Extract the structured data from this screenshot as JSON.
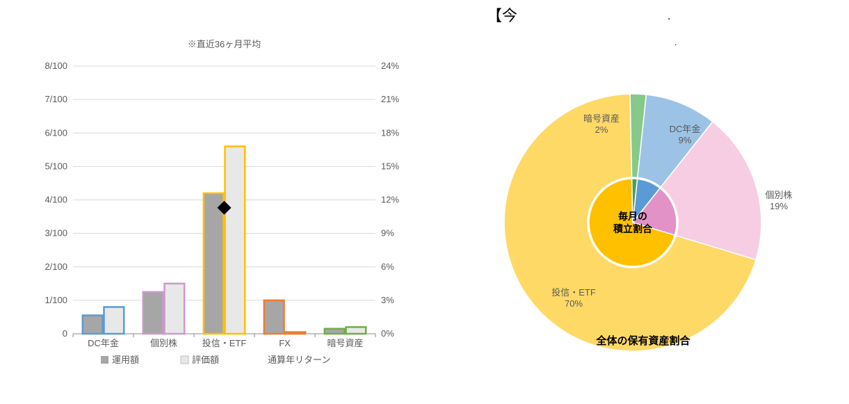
{
  "right_header_left": "【今",
  "right_header_dots": [
    "."
  ],
  "bar_chart": {
    "type": "grouped-bar-with-marker",
    "subtitle": "※直近36ヶ月平均",
    "categories": [
      "DC年金",
      "個別株",
      "投信・ETF",
      "FX",
      "暗号資産"
    ],
    "y_left": {
      "min": 0,
      "max": 8,
      "ticks": [
        0,
        1,
        2,
        3,
        4,
        5,
        6,
        7,
        8
      ],
      "labels": [
        "0",
        "1/100",
        "2/100",
        "3/100",
        "4/100",
        "5/100",
        "6/100",
        "7/100",
        "8/100"
      ],
      "color": "#595959",
      "fontsize": 13
    },
    "y_right": {
      "min": 0,
      "max": 24,
      "ticks": [
        0,
        3,
        6,
        9,
        12,
        15,
        18,
        21,
        24
      ],
      "labels": [
        "0%",
        "3%",
        "6%",
        "9%",
        "12%",
        "15%",
        "18%",
        "21%",
        "24%"
      ],
      "color": "#595959",
      "fontsize": 13
    },
    "series_a": {
      "label": "運用額",
      "values": [
        0.55,
        1.25,
        4.2,
        1.0,
        0.15
      ]
    },
    "series_b": {
      "label": "評価額",
      "values": [
        0.8,
        1.5,
        5.6,
        0.05,
        0.2
      ]
    },
    "marker": {
      "label": "通算年リターン",
      "values": [
        null,
        null,
        11.3,
        null,
        null
      ],
      "symbol": "diamond",
      "color": "#000000",
      "size": 10
    },
    "colors_fill": [
      "#a6a6a6",
      "#a6a6a6",
      "#a6a6a6",
      "#a6a6a6",
      "#a6a6a6"
    ],
    "colors_stroke_a": [
      "#5b9bd5",
      "#cc99cc",
      "#ffc000",
      "#ed7d31",
      "#70ad47"
    ],
    "colors_fill_b": [
      "#e8e8e8",
      "#e8e8e8",
      "#e8e8e8",
      "#e8e8e8",
      "#e8e8e8"
    ],
    "colors_stroke_b": [
      "#5b9bd5",
      "#cc99cc",
      "#ffc000",
      "#ed7d31",
      "#70ad47"
    ],
    "bar_width": 0.33,
    "stroke_width": 2.5,
    "gridline_color": "#d9d9d9",
    "axis_color": "#888888",
    "title_fontsize": 13,
    "label_fontsize": 13,
    "legend_fontsize": 13,
    "legend_marker_fill_a": "#a6a6a6",
    "legend_marker_fill_b": "#e8e8e8"
  },
  "pie_chart": {
    "type": "donut-nested",
    "outer_title": "全体の保有資産割合",
    "inner_title_line1": "毎月の",
    "inner_title_line2": "積立割合",
    "outer": {
      "slices": [
        {
          "label": "DC年金",
          "pct": 9,
          "color": "#9cc3e6",
          "label_line1": "DC年金",
          "label_line2": "9%"
        },
        {
          "label": "個別株",
          "pct": 19,
          "color": "#f7cde3",
          "label_line1": "個別株",
          "label_line2": "19%"
        },
        {
          "label": "投信・ETF",
          "pct": 70,
          "color": "#ffd966",
          "label_line1": "投信・ETF",
          "label_line2": "70%"
        },
        {
          "label": "暗号資産",
          "pct": 2,
          "color": "#86c989",
          "label_line1": "暗号資産",
          "label_line2": "2%"
        }
      ],
      "start_angle": -84,
      "r_inner": 65,
      "r_outer": 185
    },
    "inner": {
      "slices": [
        {
          "color": "#5b9bd5",
          "pct": 9
        },
        {
          "color": "#e292c6",
          "pct": 19
        },
        {
          "color": "#ffc000",
          "pct": 70
        },
        {
          "color": "#4f9f52",
          "pct": 2
        }
      ],
      "start_angle": -84,
      "r_inner": 0,
      "r_outer": 63
    },
    "stroke": "#ffffff",
    "stroke_width": 1.5,
    "label_fontsize": 13,
    "label_color": "#595959",
    "title_fontsize": 15,
    "title_color": "#000000",
    "title_weight": "bold",
    "inner_title_fontsize": 14,
    "inner_title_color": "#000000",
    "inner_title_weight": "bold",
    "header_fontsize": 22,
    "header_color": "#000000"
  }
}
